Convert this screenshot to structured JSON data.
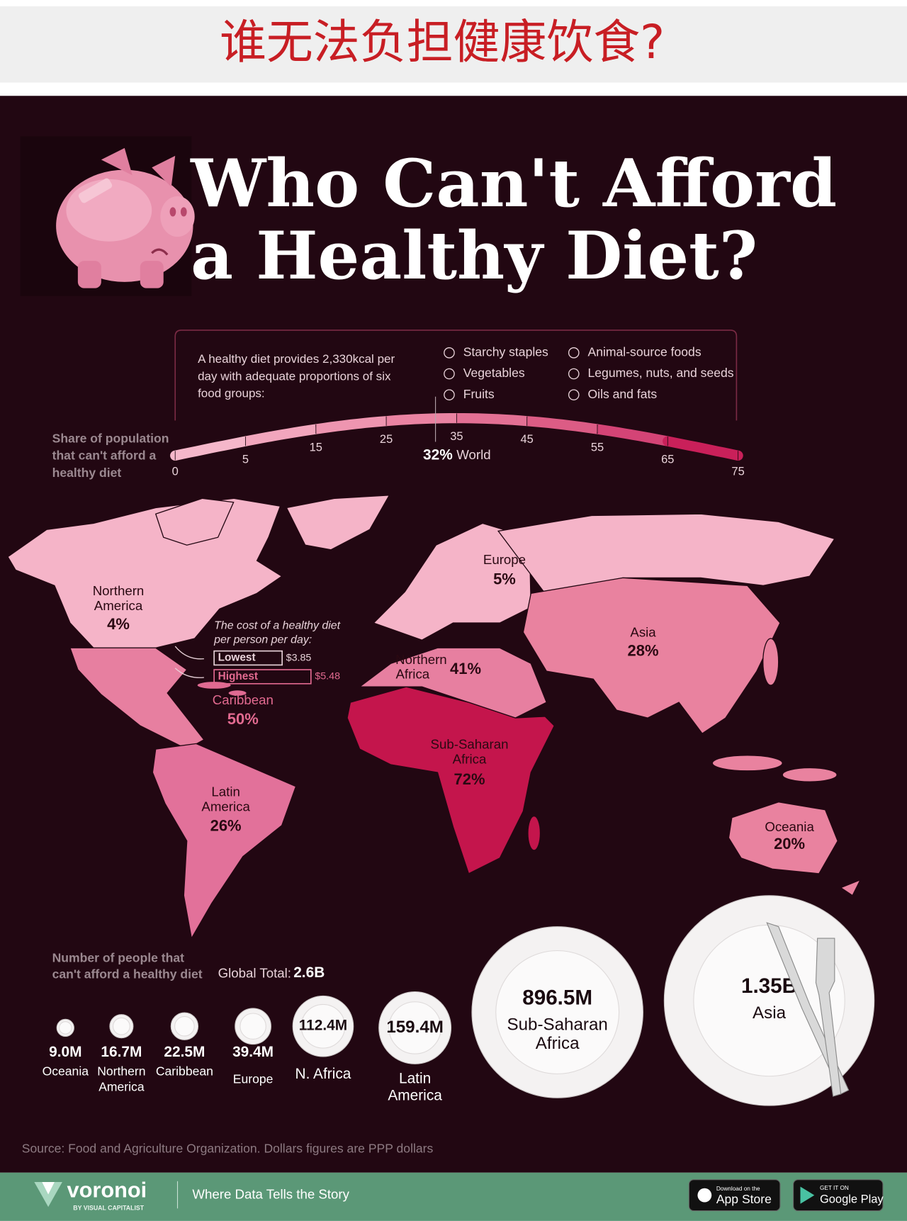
{
  "banner": {
    "title": "谁无法负担健康饮食?"
  },
  "header": {
    "title_lines": [
      "Who Can't Afford",
      "a Healthy Diet?"
    ]
  },
  "intro": {
    "lines": [
      "A healthy diet provides 2,330kcal per",
      "day with adequate proportions of six",
      "food groups:"
    ],
    "food_groups": [
      "Starchy staples",
      "Vegetables",
      "Fruits",
      "Animal-source foods",
      "Legumes, nuts, and seeds",
      "Oils and fats"
    ]
  },
  "scale": {
    "label_lines": [
      "Share of population",
      "that can't afford a",
      "healthy diet"
    ],
    "ticks": [
      0,
      5,
      15,
      25,
      35,
      45,
      55,
      65,
      75
    ],
    "world": {
      "value": 32,
      "value_label": "32%",
      "name": "World"
    }
  },
  "map": {
    "regions": [
      {
        "name_lines": [
          "Northern",
          "America"
        ],
        "value_label": "4%"
      },
      {
        "name_lines": [
          "Europe"
        ],
        "value_label": "5%"
      },
      {
        "name_lines": [
          "Asia"
        ],
        "value_label": "28%"
      },
      {
        "name_lines": [
          "Northern",
          "Africa"
        ],
        "value_label": "41%"
      },
      {
        "name_lines": [
          "Caribbean"
        ],
        "value_label": "50%"
      },
      {
        "name_lines": [
          "Sub-Saharan",
          "Africa"
        ],
        "value_label": "72%"
      },
      {
        "name_lines": [
          "Latin",
          "America"
        ],
        "value_label": "26%"
      },
      {
        "name_lines": [
          "Oceania"
        ],
        "value_label": "20%"
      }
    ]
  },
  "cost": {
    "title_lines": [
      "The cost of a healthy diet",
      "per person per day:"
    ],
    "items": [
      {
        "label": "Lowest",
        "value": 3.85,
        "value_label": "$3.85"
      },
      {
        "label": "Highest",
        "value": 5.48,
        "value_label": "$5.48"
      }
    ]
  },
  "people": {
    "label_lines": [
      "Number of people that",
      "can't afford a healthy diet"
    ],
    "total_label": "Global Total:",
    "total": "2.6B",
    "plates": [
      {
        "value": 9000000,
        "value_label": "9.0M",
        "name_lines": [
          "Oceania"
        ]
      },
      {
        "value": 16700000,
        "value_label": "16.7M",
        "name_lines": [
          "Northern",
          "America"
        ]
      },
      {
        "value": 22500000,
        "value_label": "22.5M",
        "name_lines": [
          "Caribbean"
        ]
      },
      {
        "value": 39400000,
        "value_label": "39.4M",
        "name_lines": [
          "Europe"
        ]
      },
      {
        "value": 112400000,
        "value_label": "112.4M",
        "name_lines": [
          "N. Africa"
        ]
      },
      {
        "value": 159400000,
        "value_label": "159.4M",
        "name_lines": [
          "Latin",
          "America"
        ]
      },
      {
        "value": 896500000,
        "value_label": "896.5M",
        "name_lines": [
          "Sub-Saharan",
          "Africa"
        ]
      },
      {
        "value": 1350000000,
        "value_label": "1.35B",
        "name_lines": [
          "Asia"
        ]
      }
    ]
  },
  "source": "Source: Food and Agriculture Organization. Dollars figures are PPP dollars",
  "footer": {
    "brand": "voronoi",
    "brand_sub": "BY VISUAL CAPITALIST",
    "tagline": "Where Data Tells the Story",
    "app_store": [
      "Download on the",
      "App Store"
    ],
    "google_play": [
      "GET IT ON",
      "Google Play"
    ]
  }
}
